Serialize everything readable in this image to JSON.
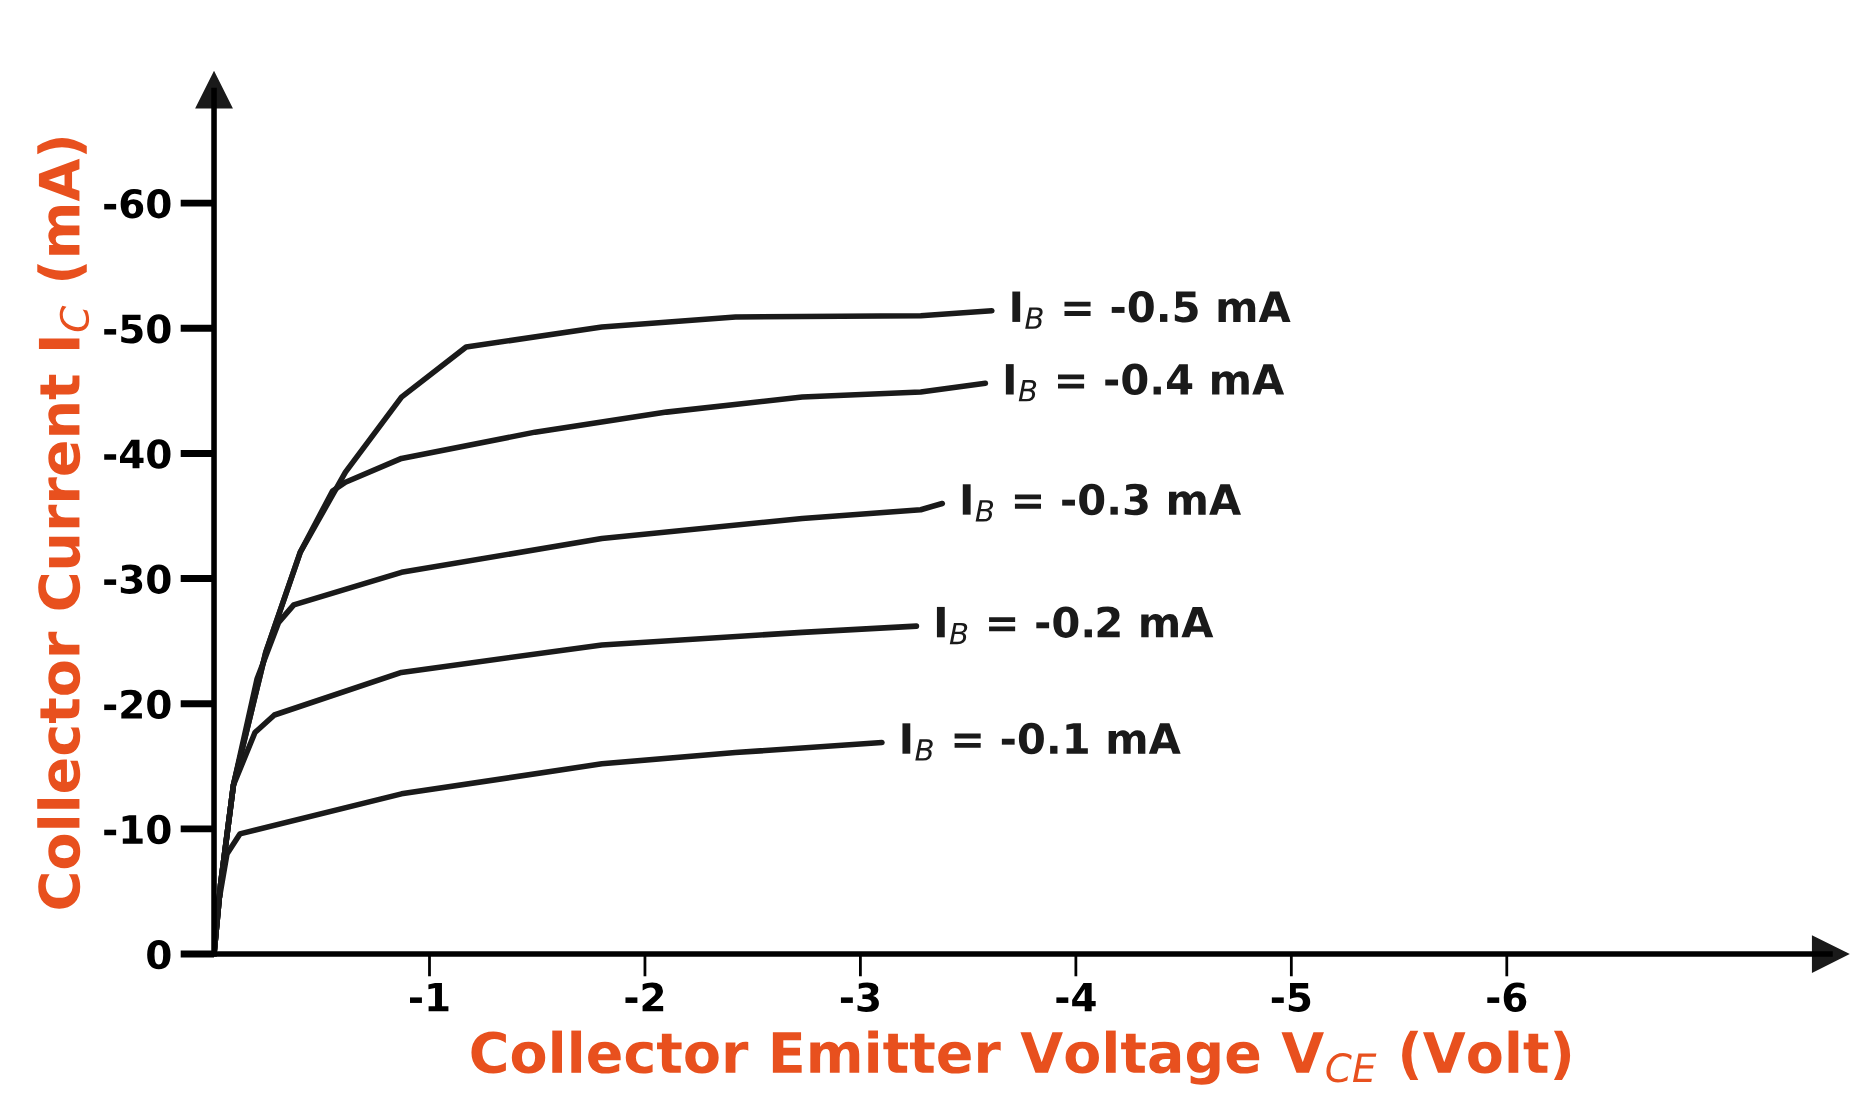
{
  "chart_data": {
    "type": "line",
    "xlabel": "Collector Emitter Voltage V$_{CE}$ (Volt)",
    "ylabel": "Collector Current I$_{C}$ (mA)",
    "xlim": [
      0,
      -7.5
    ],
    "ylim": [
      0,
      -69
    ],
    "xticks": [
      -1,
      -2,
      -3,
      -4,
      -5,
      -6
    ],
    "yticks": [
      0,
      -10,
      -20,
      -30,
      -40,
      -50,
      -60
    ],
    "grid": false,
    "legend": false,
    "marker": "none",
    "line_style": "solid",
    "series": [
      {
        "name": "I$_{B}$ = -0.5 mA",
        "color": "#1a1a1a",
        "x": [
          0,
          -0.03,
          -0.09,
          -0.24,
          -0.4,
          -0.61,
          -0.87,
          -1.17,
          -1.8,
          -2.42,
          -3.28,
          -3.61
        ],
        "values": [
          0,
          -5.5,
          -13.5,
          -24.1,
          -32.1,
          -38.5,
          -44.5,
          -48.5,
          -50.1,
          -50.9,
          -51.0,
          -51.4
        ]
      },
      {
        "name": "I$_{B}$ = -0.4 mA",
        "color": "#1a1a1a",
        "x": [
          0,
          -0.03,
          -0.09,
          -0.24,
          -0.4,
          -0.55,
          -0.61,
          -0.87,
          -1.49,
          -2.1,
          -2.73,
          -3.28,
          -3.58
        ],
        "values": [
          0,
          -5.5,
          -13.5,
          -24.1,
          -32.1,
          -37.0,
          -37.7,
          -39.6,
          -41.7,
          -43.3,
          -44.5,
          -44.9,
          -45.6
        ]
      },
      {
        "name": "I$_{B}$ = -0.3 mA",
        "color": "#1a1a1a",
        "x": [
          0,
          -0.03,
          -0.09,
          -0.2,
          -0.3,
          -0.37,
          -0.87,
          -1.8,
          -2.73,
          -3.28,
          -3.38
        ],
        "values": [
          0,
          -5.5,
          -13.5,
          -22.0,
          -26.5,
          -27.9,
          -30.5,
          -33.2,
          -34.8,
          -35.5,
          -36.0
        ]
      },
      {
        "name": "I$_{B}$ = -0.2 mA",
        "color": "#1a1a1a",
        "x": [
          0,
          -0.03,
          -0.09,
          -0.19,
          -0.28,
          -0.87,
          -1.8,
          -2.73,
          -3.26
        ],
        "values": [
          0,
          -5.5,
          -13.5,
          -17.7,
          -19.1,
          -22.5,
          -24.7,
          -25.7,
          -26.2
        ]
      },
      {
        "name": "I$_{B}$ = -0.1 mA",
        "color": "#1a1a1a",
        "x": [
          0,
          -0.02,
          -0.06,
          -0.12,
          -0.87,
          -1.8,
          -2.42,
          -3.1
        ],
        "values": [
          0,
          -4.0,
          -8.0,
          -9.6,
          -12.8,
          -15.2,
          -16.1,
          -16.9
        ]
      }
    ]
  }
}
